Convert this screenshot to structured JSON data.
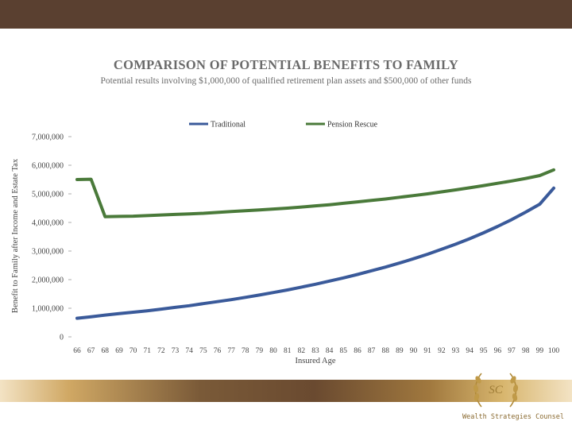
{
  "header": {
    "title": "COMPARISON OF POTENTIAL BENEFITS TO FAMILY",
    "subtitle": "Potential results involving $1,000,000 of qualified retirement plan assets and $500,000 of other funds"
  },
  "footer": {
    "brand": "Wealth Strategies Counsel",
    "logo_monogram": "SC"
  },
  "colors": {
    "traditional": "#3a5a9a",
    "pension": "#4a7a3a",
    "header_bar": "#5a4030"
  },
  "chart_data": {
    "type": "line",
    "title": "COMPARISON OF POTENTIAL BENEFITS TO FAMILY",
    "subtitle": "Potential results involving $1,000,000 of qualified retirement plan assets and $500,000 of other funds",
    "xlabel": "Insured Age",
    "ylabel": "Benefit to Family after Income and Estate Tax",
    "ylim": [
      0,
      7000000
    ],
    "yticks": [
      "0",
      "1,000,000",
      "2,000,000",
      "3,000,000",
      "4,000,000",
      "5,000,000",
      "6,000,000",
      "7,000,000"
    ],
    "legend_position": "top",
    "x": [
      "66",
      "67",
      "68",
      "69",
      "70",
      "71",
      "72",
      "73",
      "74",
      "75",
      "76",
      "77",
      "78",
      "79",
      "80",
      "81",
      "82",
      "83",
      "84",
      "85",
      "86",
      "87",
      "88",
      "89",
      "90",
      "91",
      "92",
      "93",
      "94",
      "95",
      "96",
      "97",
      "98",
      "99",
      "100"
    ],
    "series": [
      {
        "name": "Traditional",
        "values": [
          650000,
          700000,
          760000,
          810000,
          860000,
          910000,
          970000,
          1030000,
          1090000,
          1160000,
          1230000,
          1300000,
          1380000,
          1460000,
          1550000,
          1640000,
          1740000,
          1840000,
          1950000,
          2060000,
          2180000,
          2310000,
          2440000,
          2580000,
          2730000,
          2890000,
          3060000,
          3240000,
          3430000,
          3640000,
          3860000,
          4100000,
          4360000,
          4640000,
          5200000
        ]
      },
      {
        "name": "Pension Rescue",
        "values": [
          5500000,
          5510000,
          4200000,
          4210000,
          4220000,
          4240000,
          4260000,
          4280000,
          4300000,
          4320000,
          4350000,
          4380000,
          4410000,
          4440000,
          4470000,
          4500000,
          4540000,
          4580000,
          4620000,
          4670000,
          4720000,
          4770000,
          4820000,
          4880000,
          4940000,
          5000000,
          5070000,
          5140000,
          5210000,
          5290000,
          5370000,
          5450000,
          5540000,
          5640000,
          5840000
        ]
      }
    ]
  }
}
